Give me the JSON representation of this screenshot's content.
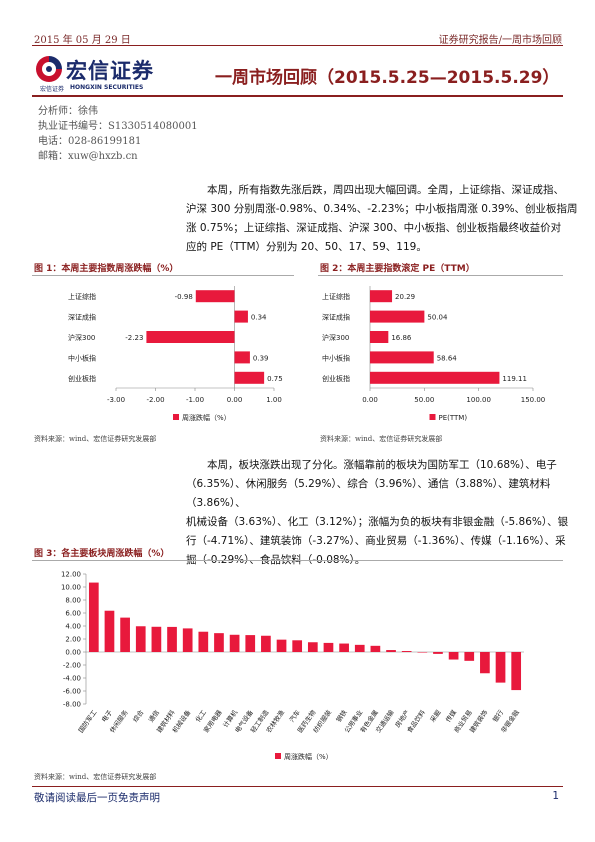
{
  "header": {
    "date": "2015 年 05 月 29 日",
    "report_type": "证券研究报告/一周市场回顾"
  },
  "brand": {
    "name_cn": "宏信证券",
    "name_en": "HONGXIN SECURITIES",
    "sub_cn": "宏信证券",
    "logo_color": "#c8102e",
    "navy": "#1b2b6b"
  },
  "title": "一周市场回顾（2015.5.25—2015.5.29）",
  "author": {
    "analyst": "分析师：徐伟",
    "license": "执业证书编号：S1330514080001",
    "phone": "电话：028-86199181",
    "email": "邮箱：xuw@hxzb.cn"
  },
  "para1": {
    "line1": "本周，所有指数先涨后跌，周四出现大幅回调。全周，上证综指、深证成指、",
    "line2": "沪深 300 分别周涨-0.98%、0.34%、-2.23%；中小板指周涨 0.39%、创业板指周",
    "line3": "涨 0.75%；上证综指、深证成指、沪深 300、中小板指、创业板指最终收益价对",
    "line4": "应的 PE（TTM）分别为 20、50、17、59、119。"
  },
  "para2": {
    "line1": "本周，板块涨跌出现了分化。涨幅靠前的板块为国防军工（10.68%）、电子",
    "line2": "（6.35%）、休闲服务（5.29%）、综合（3.96%）、通信（3.88%）、建筑材料（3.86%）、",
    "line3": "机械设备（3.63%）、化工（3.12%）；涨幅为负的板块有非银金融（-5.86%）、银",
    "line4": "行（-4.71%）、建筑装饰（-3.27%）、商业贸易（-1.36%）、传媒（-1.16%）、采",
    "line5": "掘（-0.29%）、食品饮料（-0.08%）。"
  },
  "figures": {
    "fig1": {
      "title": "图 1：本周主要指数周涨跌幅（%）",
      "source": "资料来源：wind、宏信证券研究发展部"
    },
    "fig2": {
      "title": "图 2：本周主要指数滚定 PE（TTM）",
      "source": "资料来源：wind、宏信证券研究发展部"
    },
    "fig3": {
      "title": "图 3：各主要板块周涨跌幅（%）",
      "source": "资料来源：wind、宏信证券研究发展部"
    }
  },
  "colors": {
    "bar": "#e8193c",
    "accent": "#8a1f1f",
    "axis": "#888888"
  },
  "chart_data": [
    {
      "type": "bar",
      "orientation": "horizontal",
      "categories": [
        "上证综指",
        "深证成指",
        "沪深300",
        "中小板指",
        "创业板指"
      ],
      "values": [
        -0.98,
        0.34,
        -2.23,
        0.39,
        0.75
      ],
      "value_labels": [
        "-0.98",
        "0.34",
        "-2.23",
        "0.39",
        "0.75"
      ],
      "xlim": [
        -3.0,
        1.0
      ],
      "ticks": [
        -3.0,
        -2.0,
        -1.0,
        0.0,
        1.0
      ],
      "tick_labels": [
        "-3.00",
        "-2.00",
        "-1.00",
        "0.00",
        "1.00"
      ],
      "legend": "周涨跌幅（%）",
      "legend_position": "bottom"
    },
    {
      "type": "bar",
      "orientation": "horizontal",
      "categories": [
        "上证综指",
        "深证成指",
        "沪深300",
        "中小板指",
        "创业板指"
      ],
      "values": [
        20.29,
        50.04,
        16.86,
        58.64,
        119.11
      ],
      "value_labels": [
        "20.29",
        "50.04",
        "16.86",
        "58.64",
        "119.11"
      ],
      "xlim": [
        0,
        150
      ],
      "ticks": [
        0,
        50,
        100,
        150
      ],
      "tick_labels": [
        "0.00",
        "50.00",
        "100.00",
        "150.00"
      ],
      "legend": "PE(TTM)",
      "legend_position": "bottom"
    },
    {
      "type": "bar",
      "orientation": "vertical",
      "categories": [
        "国防军工",
        "电子",
        "休闲服务",
        "综合",
        "通信",
        "建筑材料",
        "机械设备",
        "化工",
        "家用电器",
        "计算机",
        "电气设备",
        "轻工制造",
        "农林牧渔",
        "汽车",
        "医药生物",
        "纺织服装",
        "钢铁",
        "公用事业",
        "有色金属",
        "交通运输",
        "房地产",
        "食品饮料",
        "采掘",
        "传媒",
        "商业贸易",
        "建筑装饰",
        "银行",
        "非银金融"
      ],
      "values": [
        10.68,
        6.35,
        5.29,
        3.96,
        3.88,
        3.86,
        3.63,
        3.12,
        2.9,
        2.65,
        2.6,
        2.5,
        1.9,
        1.8,
        1.5,
        1.4,
        1.3,
        1.1,
        0.95,
        0.3,
        0.15,
        -0.08,
        -0.29,
        -1.16,
        -1.36,
        -3.27,
        -4.71,
        -5.86
      ],
      "ylim": [
        -8.0,
        12.0
      ],
      "ticks": [
        12.0,
        10.0,
        8.0,
        6.0,
        4.0,
        2.0,
        0.0,
        -2.0,
        -4.0,
        -6.0,
        -8.0
      ],
      "tick_labels": [
        "12.00",
        "10.00",
        "8.00",
        "6.00",
        "4.00",
        "2.00",
        "0.00",
        "-2.00",
        "-4.00",
        "-6.00",
        "-8.00"
      ],
      "legend": "周涨跌幅（%）",
      "legend_position": "bottom"
    }
  ],
  "footer": {
    "disclaimer": "敬请阅读最后一页免责声明",
    "page_number": "1"
  }
}
